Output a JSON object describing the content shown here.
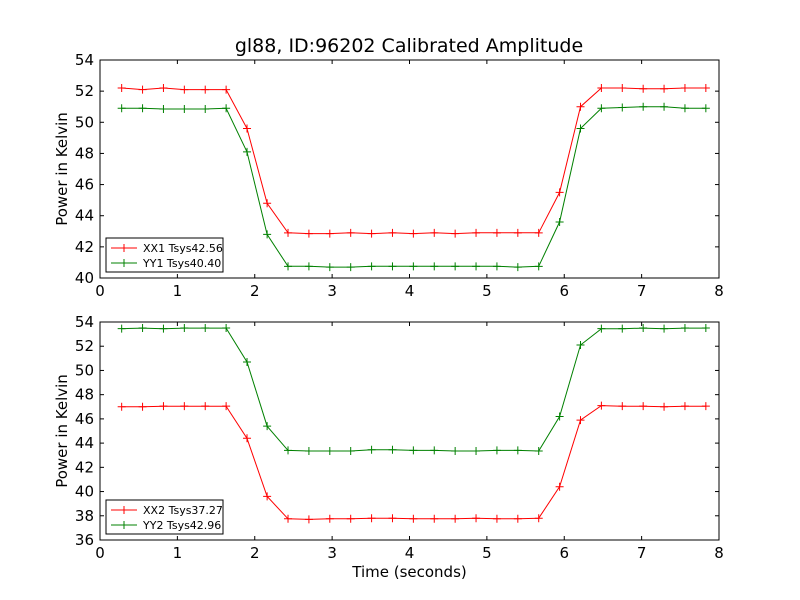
{
  "title": "gl88, ID:96202 Calibrated Amplitude",
  "colors": {
    "red": "#ff0000",
    "green": "#008000"
  },
  "chart_data": [
    {
      "type": "line",
      "xlabel": "",
      "ylabel": "Power in Kelvin",
      "xlim": [
        0,
        8
      ],
      "ylim": [
        40,
        54
      ],
      "xticks": [
        0,
        1,
        2,
        3,
        4,
        5,
        6,
        7,
        8
      ],
      "yticks": [
        40,
        42,
        44,
        46,
        48,
        50,
        52,
        54
      ],
      "legend": "bottom-left",
      "grid": false,
      "x": [
        0.28,
        0.55,
        0.82,
        1.09,
        1.36,
        1.63,
        1.9,
        2.16,
        2.43,
        2.7,
        2.97,
        3.24,
        3.51,
        3.78,
        4.05,
        4.32,
        4.59,
        4.86,
        5.13,
        5.4,
        5.67,
        5.94,
        6.21,
        6.48,
        6.75,
        7.02,
        7.29,
        7.56,
        7.83
      ],
      "series": [
        {
          "name": "XX1 Tsys42.56",
          "color": "#ff0000",
          "values": [
            52.2,
            52.1,
            52.2,
            52.1,
            52.1,
            52.1,
            49.6,
            44.8,
            42.9,
            42.85,
            42.85,
            42.9,
            42.85,
            42.9,
            42.85,
            42.9,
            42.85,
            42.9,
            42.9,
            42.9,
            42.9,
            45.5,
            51.0,
            52.2,
            52.2,
            52.15,
            52.15,
            52.2,
            52.2
          ]
        },
        {
          "name": "YY1 Tsys40.40",
          "color": "#008000",
          "values": [
            50.9,
            50.9,
            50.85,
            50.85,
            50.85,
            50.9,
            48.1,
            42.8,
            40.75,
            40.75,
            40.7,
            40.7,
            40.75,
            40.75,
            40.75,
            40.75,
            40.75,
            40.75,
            40.75,
            40.7,
            40.75,
            43.6,
            49.6,
            50.9,
            50.95,
            51.0,
            51.0,
            50.9,
            50.9
          ]
        }
      ]
    },
    {
      "type": "line",
      "xlabel": "Time (seconds)",
      "ylabel": "Power in Kelvin",
      "xlim": [
        0,
        8
      ],
      "ylim": [
        36,
        54
      ],
      "xticks": [
        0,
        1,
        2,
        3,
        4,
        5,
        6,
        7,
        8
      ],
      "yticks": [
        36,
        38,
        40,
        42,
        44,
        46,
        48,
        50,
        52,
        54
      ],
      "legend": "bottom-left",
      "grid": false,
      "x": [
        0.28,
        0.55,
        0.82,
        1.09,
        1.36,
        1.63,
        1.9,
        2.16,
        2.43,
        2.7,
        2.97,
        3.24,
        3.51,
        3.78,
        4.05,
        4.32,
        4.59,
        4.86,
        5.13,
        5.4,
        5.67,
        5.94,
        6.21,
        6.48,
        6.75,
        7.02,
        7.29,
        7.56,
        7.83
      ],
      "series": [
        {
          "name": "XX2 Tsys37.27",
          "color": "#ff0000",
          "values": [
            47.0,
            47.0,
            47.05,
            47.05,
            47.05,
            47.05,
            44.4,
            39.6,
            37.75,
            37.7,
            37.75,
            37.75,
            37.8,
            37.8,
            37.75,
            37.75,
            37.75,
            37.8,
            37.75,
            37.75,
            37.8,
            40.4,
            45.9,
            47.1,
            47.05,
            47.05,
            47.0,
            47.05,
            47.05
          ]
        },
        {
          "name": "YY2 Tsys42.96",
          "color": "#008000",
          "values": [
            53.45,
            53.5,
            53.45,
            53.5,
            53.5,
            53.5,
            50.7,
            45.4,
            43.4,
            43.35,
            43.35,
            43.35,
            43.45,
            43.45,
            43.4,
            43.4,
            43.35,
            43.35,
            43.4,
            43.4,
            43.35,
            46.2,
            52.1,
            53.45,
            53.45,
            53.5,
            53.45,
            53.5,
            53.5
          ]
        }
      ]
    }
  ]
}
